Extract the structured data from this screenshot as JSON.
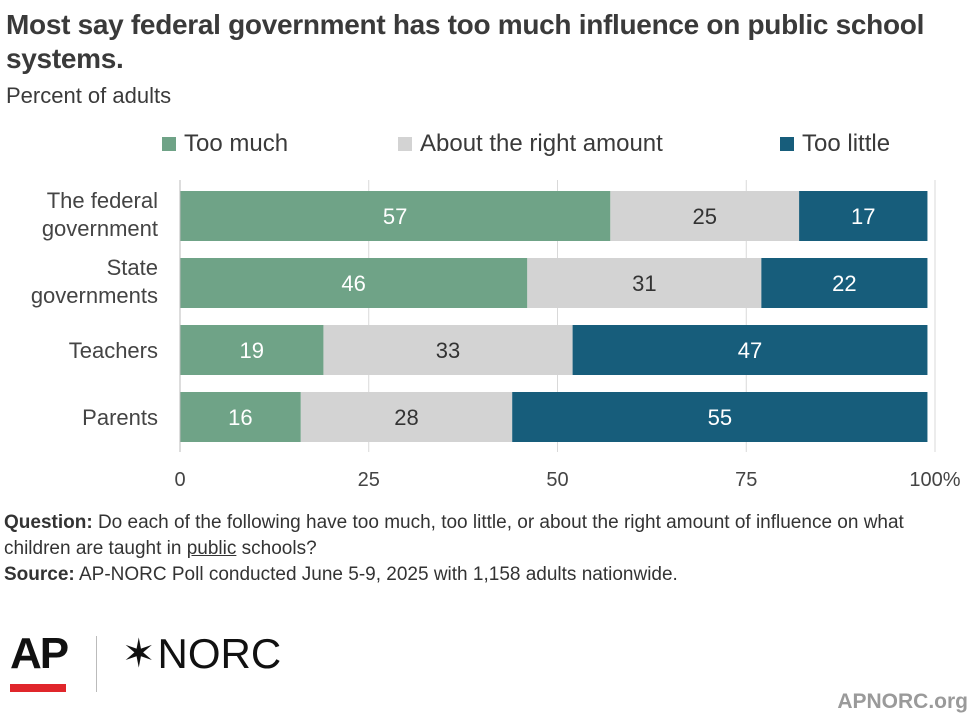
{
  "header": {
    "title": "Most say federal government has too much influence on public school systems.",
    "subtitle": "Percent of adults"
  },
  "legend": [
    {
      "label": "Too much",
      "color": "#6fa387"
    },
    {
      "label": "About the right amount",
      "color": "#d3d3d3"
    },
    {
      "label": "Too little",
      "color": "#175d7b"
    }
  ],
  "chart_data": {
    "type": "bar",
    "orientation": "horizontal",
    "stacked": true,
    "categories": [
      "The federal government",
      "State governments",
      "Teachers",
      "Parents"
    ],
    "series": [
      {
        "name": "Too much",
        "values": [
          57,
          46,
          19,
          16
        ],
        "color": "#6fa387",
        "label_color": "#ffffff"
      },
      {
        "name": "About the right amount",
        "values": [
          25,
          31,
          33,
          28
        ],
        "color": "#d3d3d3",
        "label_color": "#333333"
      },
      {
        "name": "Too little",
        "values": [
          17,
          22,
          47,
          55
        ],
        "color": "#175d7b",
        "label_color": "#ffffff"
      }
    ],
    "xlim": [
      0,
      100
    ],
    "xticks": [
      0,
      25,
      50,
      75,
      100
    ],
    "xtick_suffix": "%",
    "grid": true,
    "legend_position": "top"
  },
  "notes": {
    "question_label": "Question:",
    "question_text_1": " Do each of the following have too much, too little, or about the right amount of influence on what children are taught in ",
    "question_underlined": "public",
    "question_text_2": " schools?",
    "source_label": "Source:",
    "source_text": " AP-NORC Poll conducted June 5-9, 2025 with 1,158 adults nationwide."
  },
  "branding": {
    "ap_logo": "AP",
    "norc_logo": "NORC",
    "norc_star_icon": "✶",
    "site": "APNORC.org"
  }
}
